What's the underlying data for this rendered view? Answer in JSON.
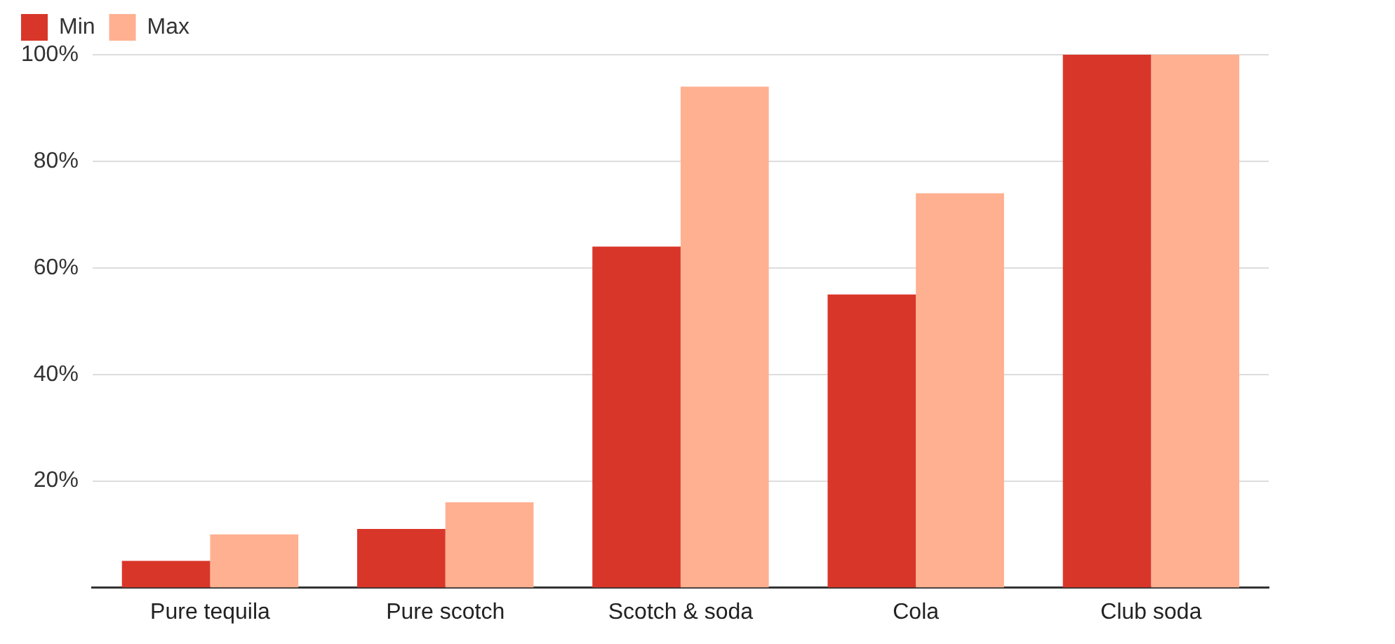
{
  "chart_data": {
    "type": "bar",
    "categories": [
      "Pure tequila",
      "Pure scotch",
      "Scotch & soda",
      "Cola",
      "Club soda"
    ],
    "series": [
      {
        "name": "Min",
        "color": "#d9362a",
        "values": [
          5,
          11,
          64,
          55,
          100
        ]
      },
      {
        "name": "Max",
        "color": "#ffb091",
        "values": [
          10,
          16,
          94,
          74,
          100
        ]
      }
    ],
    "ylim": [
      0,
      100
    ],
    "yticks": [
      {
        "value": 20,
        "label": "20%"
      },
      {
        "value": 40,
        "label": "40%"
      },
      {
        "value": 60,
        "label": "60%"
      },
      {
        "value": 80,
        "label": "80%"
      },
      {
        "value": 100,
        "label": "100%"
      }
    ],
    "grid": "y",
    "legend": "top left"
  }
}
